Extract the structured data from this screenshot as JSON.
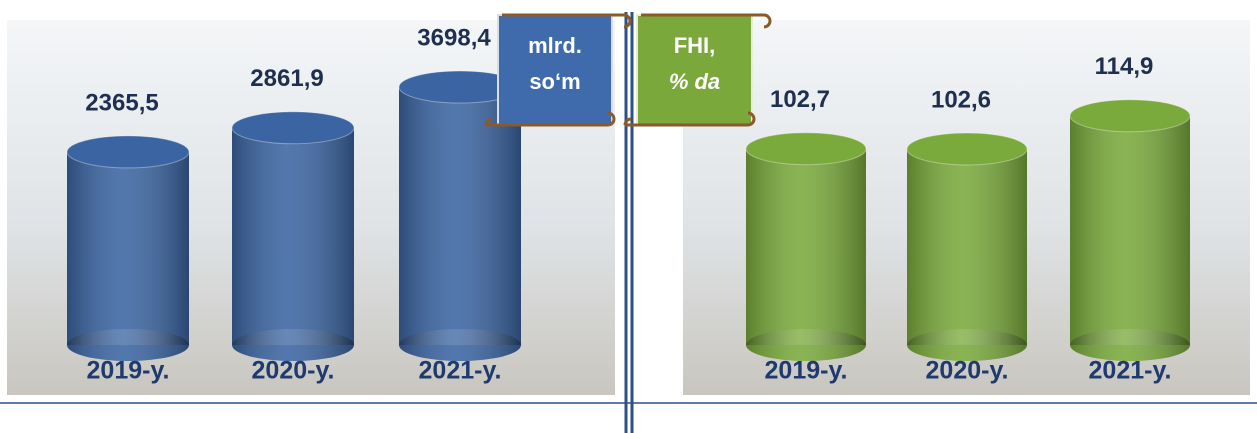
{
  "chart_data": [
    {
      "type": "bar",
      "unit_label": [
        "mlrd.",
        "so‘m"
      ],
      "categories": [
        "2019-y.",
        "2020-y.",
        "2021-y."
      ],
      "values": [
        2365.5,
        2861.9,
        3698.4
      ],
      "value_labels": [
        "2365,5",
        "2861,9",
        "3698,4"
      ],
      "color": "#3b65a2",
      "ylim": [
        -1600,
        4500
      ]
    },
    {
      "type": "bar",
      "unit_label": [
        "FHI,",
        "% da"
      ],
      "categories": [
        "2019-y.",
        "2020-y.",
        "2021-y."
      ],
      "values": [
        102.7,
        102.6,
        114.9
      ],
      "value_labels": [
        "102,7",
        "102,6",
        "114,9"
      ],
      "color": "#7aaa3c",
      "ylim": [
        30,
        140
      ]
    }
  ]
}
